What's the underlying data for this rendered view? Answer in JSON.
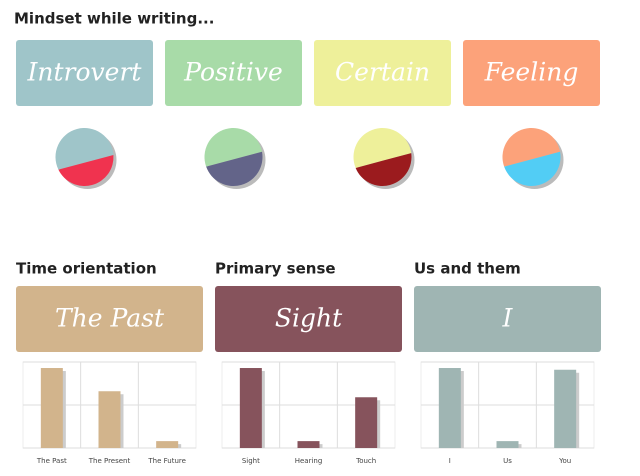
{
  "heading": "Mindset while writing...",
  "chart_data": [
    {
      "type": "pie",
      "title": "Introvert",
      "card_color": "#9fc5c9",
      "values": [
        62,
        38
      ],
      "colors": [
        "#9fc5c9",
        "#f0334f"
      ]
    },
    {
      "type": "pie",
      "title": "Positive",
      "card_color": "#a8dba8",
      "values": [
        55,
        45
      ],
      "colors": [
        "#a8dba8",
        "#636489"
      ]
    },
    {
      "type": "pie",
      "title": "Certain",
      "card_color": "#eef09a",
      "values": [
        58,
        42
      ],
      "colors": [
        "#eef09a",
        "#9b1b1e"
      ]
    },
    {
      "type": "pie",
      "title": "Feeling",
      "card_color": "#fca27a",
      "values": [
        55,
        45
      ],
      "colors": [
        "#fca27a",
        "#52cdf5"
      ]
    },
    {
      "type": "bar",
      "title": "Time orientation",
      "subtitle": "The Past",
      "card_color": "#d2b48c",
      "color": "#d2b48c",
      "categories": [
        "The Past",
        "The Present",
        "The Future"
      ],
      "values": [
        93,
        66,
        8
      ],
      "ylim": [
        0,
        100
      ],
      "yticks": [
        0,
        50,
        100
      ],
      "grid": true
    },
    {
      "type": "bar",
      "title": "Primary sense",
      "subtitle": "Sight",
      "card_color": "#86535c",
      "color": "#86535c",
      "categories": [
        "Sight",
        "Hearing",
        "Touch"
      ],
      "values": [
        93,
        8,
        59
      ],
      "ylim": [
        0,
        100
      ],
      "yticks": [
        0,
        50,
        100
      ],
      "grid": true
    },
    {
      "type": "bar",
      "title": "Us and them",
      "subtitle": "I",
      "card_color": "#9fb5b3",
      "color": "#9fb5b3",
      "categories": [
        "I",
        "Us",
        "You"
      ],
      "values": [
        93,
        8,
        91
      ],
      "ylim": [
        0,
        100
      ],
      "yticks": [
        0,
        50,
        100
      ],
      "grid": true
    }
  ]
}
